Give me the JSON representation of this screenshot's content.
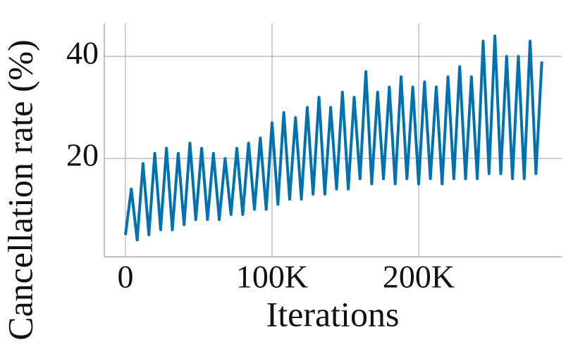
{
  "chart_data": {
    "type": "line",
    "xlabel": "Iterations",
    "ylabel": "Cancellation rate (%)",
    "xlim": [
      -14400,
      297600
    ],
    "ylim": [
      0.7,
      46.5
    ],
    "xticks": [
      0,
      {
        "value": 100000,
        "label": "100K"
      },
      {
        "value": 200000,
        "label": "200K"
      }
    ],
    "yticks": [
      20,
      40
    ],
    "grid": true,
    "x": [
      0,
      4000,
      8000,
      12000,
      16000,
      20000,
      24000,
      28000,
      32000,
      36000,
      40000,
      44000,
      48000,
      52000,
      56000,
      60000,
      64000,
      68000,
      72000,
      76000,
      80000,
      84000,
      88000,
      92000,
      96000,
      100000,
      104000,
      108000,
      112000,
      116000,
      120000,
      124000,
      128000,
      132000,
      136000,
      140000,
      144000,
      148000,
      152000,
      156000,
      160000,
      164000,
      168000,
      172000,
      176000,
      180000,
      184000,
      188000,
      192000,
      196000,
      200000,
      204000,
      208000,
      212000,
      216000,
      220000,
      224000,
      228000,
      232000,
      236000,
      240000,
      244000,
      248000,
      252000,
      256000,
      260000,
      264000,
      268000,
      272000,
      276000,
      280000,
      284000
    ],
    "series": [
      {
        "color": "#0072b2",
        "values": [
          5,
          14,
          4,
          19,
          5,
          21,
          6,
          22,
          6,
          21,
          7,
          23,
          8,
          22,
          8,
          21,
          8,
          20,
          9,
          22,
          9,
          23,
          10,
          24,
          10,
          27,
          11,
          29,
          12,
          28,
          12,
          30,
          13,
          32,
          13,
          30,
          14,
          33,
          14,
          32,
          16,
          37,
          15,
          33,
          16,
          34,
          15,
          36,
          16,
          34,
          15,
          35,
          16,
          34,
          15,
          36,
          16,
          38,
          16,
          36,
          16,
          43,
          17,
          44,
          17,
          40,
          16,
          40,
          16,
          43,
          17,
          39
        ]
      }
    ]
  }
}
